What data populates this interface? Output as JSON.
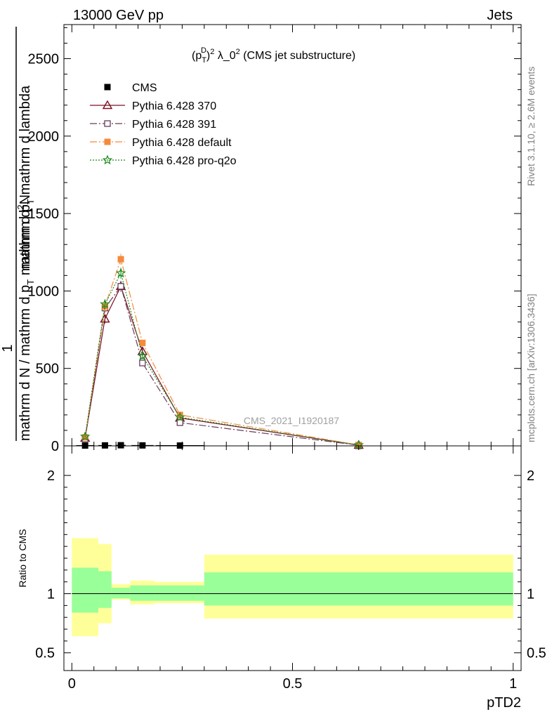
{
  "header": {
    "energy_label": "13000 GeV pp",
    "category_label": "Jets"
  },
  "side_labels": {
    "rivet": "Rivet 3.1.10, ≥ 2.6M events",
    "mcplots": "mcplots.cern.ch [arXiv:1306.3436]"
  },
  "chart_data": [
    {
      "type": "line",
      "title": "(p_T^D)^2 λ_0^2 (CMS jet substructure)",
      "title_parts": {
        "pre": "(p",
        "sup1": "D",
        "sub1": "T",
        "mid": ")",
        "sup2": "2",
        "lambda": " λ_0",
        "sup3": "2",
        "post": " (CMS jet substructure)"
      },
      "ylabel_parts": {
        "one": "1",
        "den": "mathrm d N / mathrm d p",
        "sub": "T",
        "den2": " mathrm d p",
        "sub2": "T",
        "den3": " mathrm d lambda",
        "num_top": "mathrm d",
        "num_sup": "2",
        "num_N": "N"
      },
      "ylim": [
        0,
        2720
      ],
      "yticks": [
        0,
        500,
        1000,
        1500,
        2000,
        2500
      ],
      "ytick_labels": [
        "0",
        "500",
        "1000",
        "1500",
        "2000",
        "2500"
      ],
      "xlim": [
        -0.018,
        1.018
      ],
      "watermark": "CMS_2021_I1920187",
      "legend_position": "top-left",
      "series": [
        {
          "name": "CMS",
          "color": "#000000",
          "marker": "square-filled",
          "x": [
            0.03,
            0.075,
            0.111,
            0.16,
            0.245,
            0.65
          ],
          "y": [
            2,
            3,
            4,
            3,
            2,
            0.1
          ],
          "xerr": [
            0.02,
            0.015,
            0.011,
            0.025,
            0.055,
            0.35
          ]
        },
        {
          "name": "Pythia 6.428 370",
          "color": "#7b1020",
          "marker": "triangle-open",
          "dash": "",
          "x": [
            0.03,
            0.075,
            0.111,
            0.16,
            0.245,
            0.65
          ],
          "y": [
            50,
            820,
            1030,
            610,
            180,
            5
          ],
          "yerr": [
            8,
            30,
            35,
            20,
            10,
            2
          ]
        },
        {
          "name": "Pythia 6.428 391",
          "color": "#6a3a5c",
          "marker": "square-open",
          "dash": "10,3,2,3",
          "x": [
            0.03,
            0.075,
            0.111,
            0.16,
            0.245,
            0.65
          ],
          "y": [
            45,
            890,
            1030,
            535,
            150,
            4
          ],
          "yerr": [
            8,
            30,
            35,
            20,
            10,
            2
          ]
        },
        {
          "name": "Pythia 6.428 default",
          "color": "#f58a3c",
          "marker": "square-filled",
          "dash": "10,3,2,3",
          "x": [
            0.03,
            0.075,
            0.111,
            0.16,
            0.245,
            0.65
          ],
          "y": [
            55,
            900,
            1205,
            665,
            200,
            6
          ],
          "yerr": [
            8,
            30,
            35,
            20,
            10,
            2
          ]
        },
        {
          "name": "Pythia 6.428 pro-q2o",
          "color": "#1e8a1e",
          "marker": "star-open",
          "dash": "2,2",
          "x": [
            0.03,
            0.075,
            0.111,
            0.16,
            0.245,
            0.65
          ],
          "y": [
            60,
            915,
            1115,
            580,
            185,
            5
          ],
          "yerr": [
            8,
            30,
            35,
            20,
            10,
            2
          ]
        }
      ]
    },
    {
      "type": "area",
      "ylabel": "Ratio to CMS",
      "xlabel": "pTD2",
      "ylim": [
        0.35,
        2.25
      ],
      "yticks": [
        0.5,
        1,
        2
      ],
      "ytick_labels": [
        "0.5",
        "1",
        "2"
      ],
      "xlim": [
        -0.018,
        1.018
      ],
      "xticks": [
        0,
        0.5,
        1
      ],
      "xtick_labels": [
        "0",
        "0.5",
        "1"
      ],
      "reference": 1,
      "bands": {
        "bin_edges": [
          0,
          0.06,
          0.09,
          0.132,
          0.188,
          0.3,
          1.0
        ],
        "inner_low": [
          0.84,
          0.88,
          0.96,
          0.94,
          0.94,
          0.9
        ],
        "inner_high": [
          1.22,
          1.19,
          1.05,
          1.07,
          1.07,
          1.18
        ],
        "outer_low": [
          0.64,
          0.75,
          0.95,
          0.91,
          0.92,
          0.79
        ],
        "outer_high": [
          1.47,
          1.42,
          1.08,
          1.11,
          1.1,
          1.33
        ],
        "inner_color": "#99ff99",
        "outer_color": "#ffff99"
      }
    }
  ]
}
